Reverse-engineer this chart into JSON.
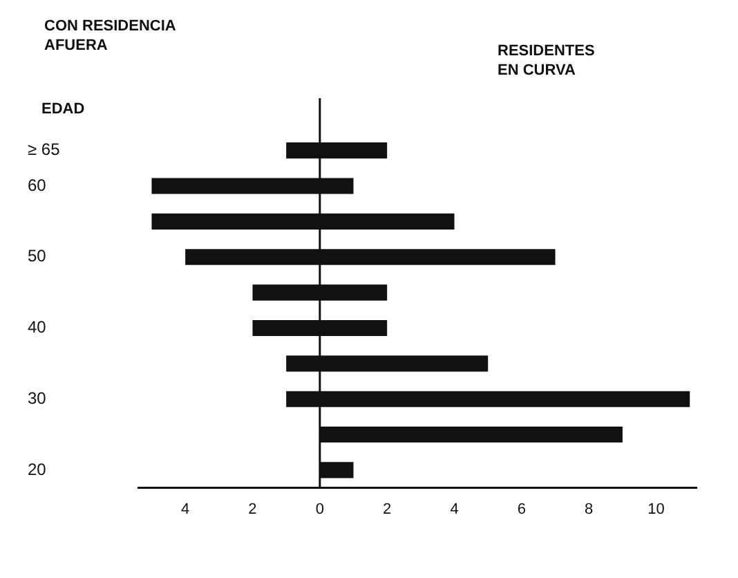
{
  "chart_data": {
    "type": "bar",
    "orientation": "horizontal",
    "stacked": true,
    "ylabel": "EDAD",
    "categories": [
      "≥ 65",
      "60",
      null,
      "50",
      null,
      "40",
      null,
      "30",
      null,
      "20"
    ],
    "series": [
      {
        "color": "#111111",
        "values": [
          -1,
          -5,
          -5,
          -4,
          -2,
          -2,
          -1,
          -1,
          0,
          0
        ]
      },
      {
        "color": "#111111",
        "values": [
          2,
          1,
          4,
          7,
          2,
          2,
          5,
          11,
          9,
          1
        ]
      }
    ],
    "xlim": [
      -5.4,
      11.2
    ],
    "xticks": [
      {
        "value": -4,
        "label": "4"
      },
      {
        "value": -2,
        "label": "2"
      },
      0,
      2,
      4,
      6,
      8,
      10
    ],
    "ref_lines": [
      {
        "axis": "x",
        "value": 0
      }
    ],
    "annotations": [
      "CON RESIDENCIA AFUERA",
      "RESIDENTES EN CURVA"
    ],
    "grid": false,
    "legend": false
  }
}
